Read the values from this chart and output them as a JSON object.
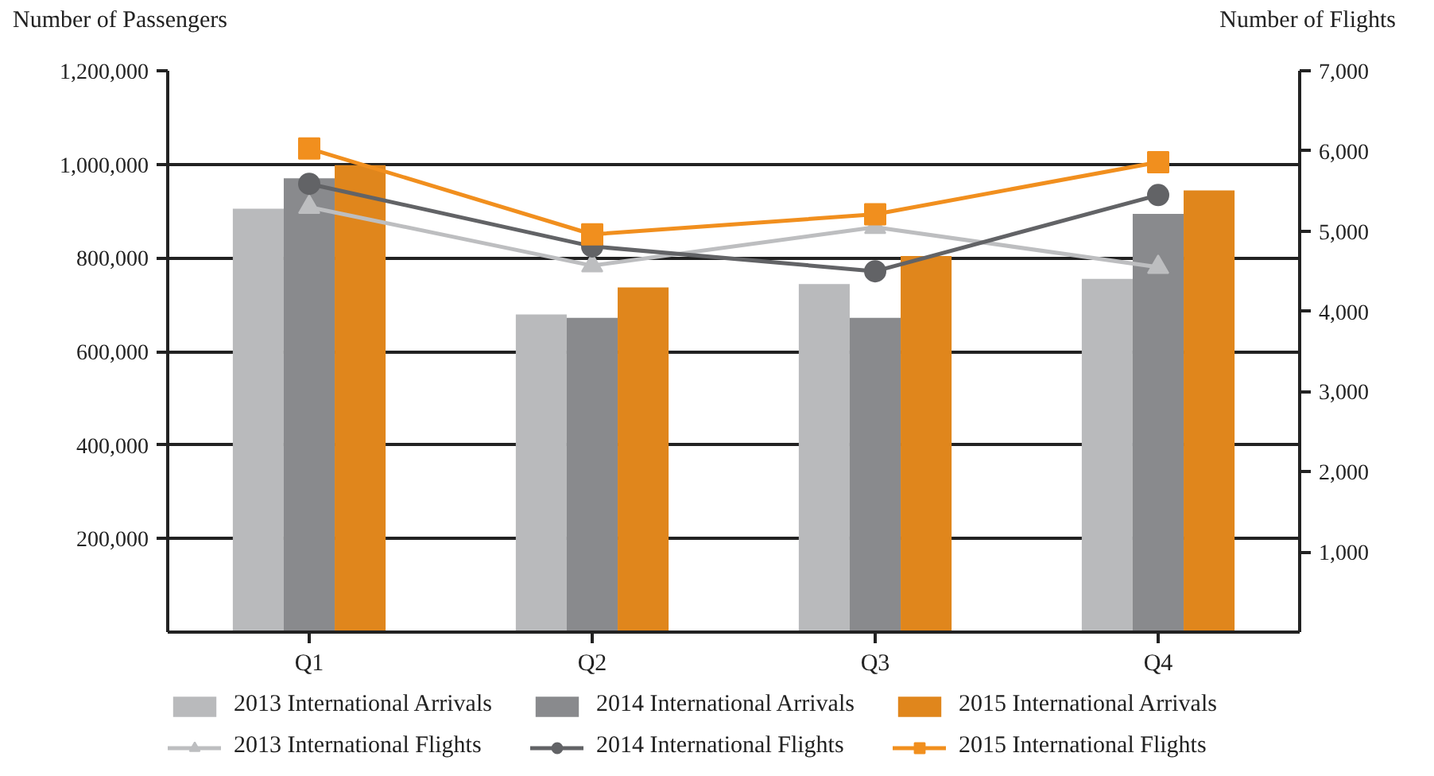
{
  "chart_data": {
    "type": "bar",
    "ylabel": "Number of Passengers",
    "y2label": "Number of Flights",
    "categories": [
      "Q1",
      "Q2",
      "Q3",
      "Q4"
    ],
    "series": [
      {
        "name": "2013 International Arrivals",
        "color": "#b9babc",
        "values": [
          905000,
          679000,
          744000,
          755000
        ]
      },
      {
        "name": "2014 International Arrivals",
        "color": "#898a8d",
        "values": [
          970000,
          672000,
          672000,
          894000
        ]
      },
      {
        "name": "2015 International Arrivals",
        "color": "#e0861c",
        "values": [
          998000,
          737000,
          804000,
          944000
        ]
      },
      {
        "name": "2013 International Flights",
        "type": "line",
        "axis": "y2",
        "marker": "triangle",
        "color": "#bdbec0",
        "values": [
          5300,
          4570,
          5050,
          4550
        ]
      },
      {
        "name": "2014 International Flights",
        "type": "line",
        "axis": "y2",
        "marker": "circle",
        "color": "#626366",
        "values": [
          5590,
          4810,
          4500,
          5450
        ]
      },
      {
        "name": "2015 International Flights",
        "type": "line",
        "axis": "y2",
        "marker": "square",
        "color": "#f18f1e",
        "values": [
          6030,
          4960,
          5210,
          5860
        ]
      }
    ],
    "ylim": [
      0,
      1200000
    ],
    "yticks": [
      {
        "value": 200000,
        "label": "200,000"
      },
      {
        "value": 400000,
        "label": "400,000"
      },
      {
        "value": 600000,
        "label": "600,000"
      },
      {
        "value": 800000,
        "label": "800,000"
      },
      {
        "value": 1000000,
        "label": "1,000,000"
      },
      {
        "value": 1200000,
        "label": "1,200,000"
      }
    ],
    "y2lim": [
      0,
      7000
    ],
    "y2ticks": [
      {
        "value": 1000,
        "label": "1,000"
      },
      {
        "value": 2000,
        "label": "2,000"
      },
      {
        "value": 3000,
        "label": "3,000"
      },
      {
        "value": 4000,
        "label": "4,000"
      },
      {
        "value": 5000,
        "label": "5,000"
      },
      {
        "value": 6000,
        "label": "6,000"
      },
      {
        "value": 7000,
        "label": "7,000"
      }
    ],
    "grid": "y",
    "legend": "bottom",
    "line_style": "solid"
  }
}
